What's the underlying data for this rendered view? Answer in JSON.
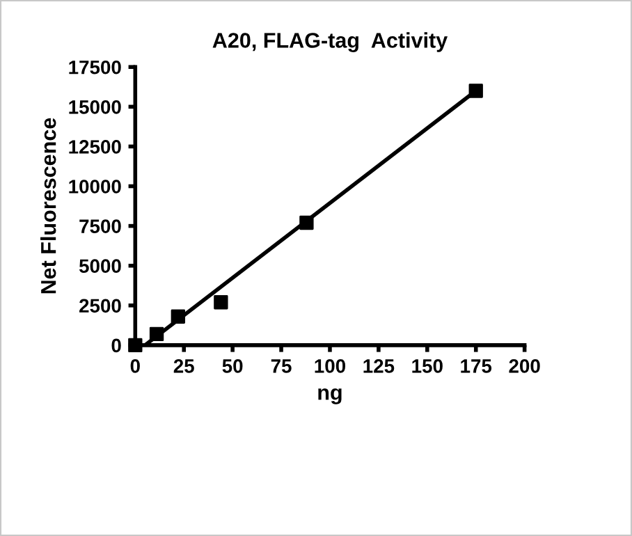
{
  "chart_data": {
    "type": "scatter",
    "title": "A20, FLAG-tag  Activity",
    "xlabel": "ng",
    "ylabel": "Net Fluorescence",
    "grid": false,
    "legend": false,
    "xlim": [
      0,
      200
    ],
    "xticks": [
      0,
      25,
      50,
      75,
      100,
      125,
      150,
      175,
      200
    ],
    "ylim": [
      0,
      17500
    ],
    "yticks": [
      0,
      2500,
      5000,
      7500,
      10000,
      12500,
      15000,
      17500
    ],
    "series": [
      {
        "color": "#000000",
        "marker": "square",
        "x": [
          0,
          11,
          22,
          44,
          88,
          175
        ],
        "values": [
          0,
          700,
          1800,
          2700,
          7700,
          16000
        ]
      },
      {
        "type": "line",
        "marker": "none",
        "color": "#000000",
        "x": [
          5,
          175
        ],
        "values": [
          0,
          16000
        ]
      }
    ]
  }
}
